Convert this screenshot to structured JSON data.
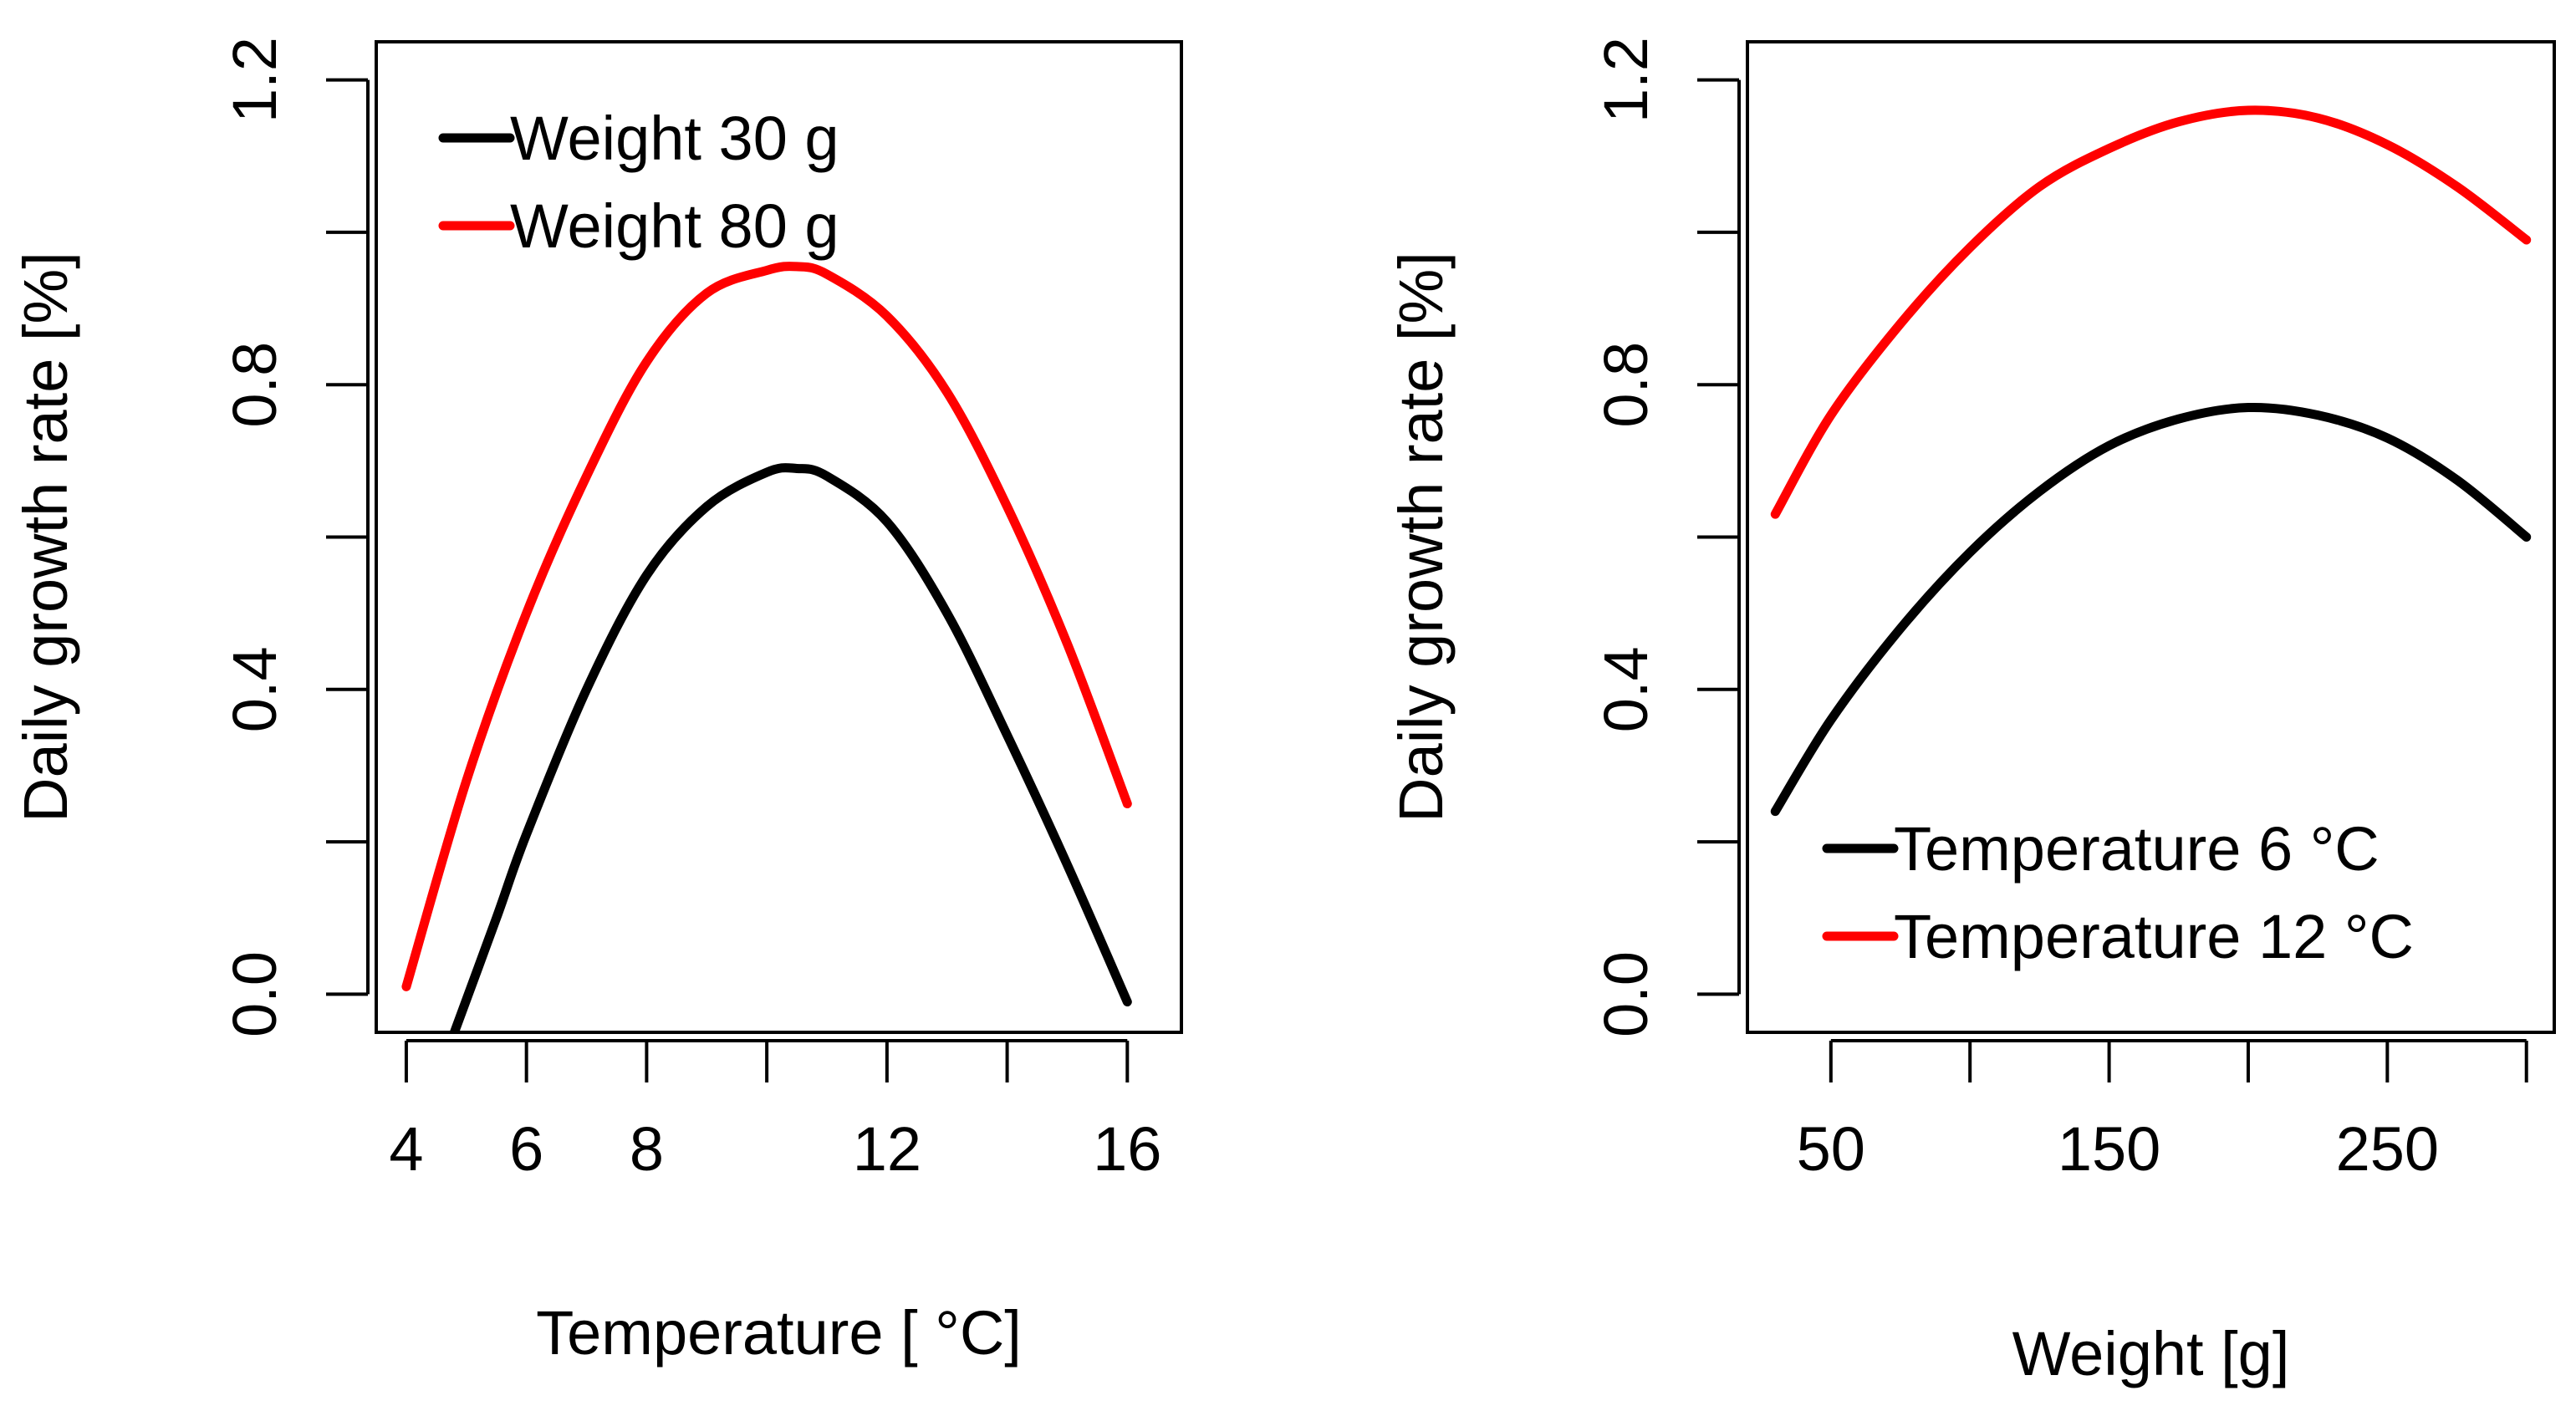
{
  "chart_data": [
    {
      "type": "line",
      "title": "",
      "xlabel": "Temperature [ °C]",
      "ylabel": "Daily growth rate [%]",
      "xlim": [
        3.5,
        16.9
      ],
      "ylim": [
        -0.05,
        1.25
      ],
      "xticks": [
        4,
        6,
        8,
        10,
        12,
        14,
        16
      ],
      "xtick_labels": [
        "4",
        "6",
        "8",
        "",
        "12",
        "",
        "16"
      ],
      "yticks": [
        0.0,
        0.2,
        0.4,
        0.6,
        0.8,
        1.0,
        1.2
      ],
      "ytick_labels": [
        "0.0",
        "",
        "0.4",
        "",
        "0.8",
        "",
        "1.2"
      ],
      "grid": false,
      "legend_position": "top-left",
      "series": [
        {
          "name": "Weight 30 g",
          "color": "#000000",
          "x": [
            4.8,
            5.5,
            6,
            7,
            8,
            9,
            10,
            10.5,
            11,
            12,
            13,
            14,
            15,
            16
          ],
          "y": [
            -0.05,
            0.1,
            0.21,
            0.4,
            0.55,
            0.64,
            0.685,
            0.69,
            0.68,
            0.62,
            0.5,
            0.34,
            0.17,
            -0.01
          ]
        },
        {
          "name": "Weight 80 g",
          "color": "#ff0000",
          "x": [
            4,
            5,
            6,
            7,
            8,
            9,
            10,
            10.5,
            11,
            12,
            13,
            14,
            15,
            16
          ],
          "y": [
            0.01,
            0.28,
            0.5,
            0.68,
            0.83,
            0.92,
            0.95,
            0.955,
            0.945,
            0.89,
            0.79,
            0.64,
            0.46,
            0.25
          ]
        }
      ]
    },
    {
      "type": "line",
      "title": "",
      "xlabel": "Weight [g]",
      "ylabel": "Daily growth rate [%]",
      "xlim": [
        20,
        310
      ],
      "ylim": [
        -0.05,
        1.25
      ],
      "xticks": [
        50,
        100,
        150,
        200,
        250,
        300
      ],
      "xtick_labels": [
        "50",
        "",
        "150",
        "",
        "250",
        ""
      ],
      "yticks": [
        0.0,
        0.2,
        0.4,
        0.6,
        0.8,
        1.0,
        1.2
      ],
      "ytick_labels": [
        "0.0",
        "",
        "0.4",
        "",
        "0.8",
        "",
        "1.2"
      ],
      "grid": false,
      "legend_position": "bottom-right",
      "series": [
        {
          "name": "Temperature 6 °C",
          "color": "#000000",
          "x": [
            30,
            50,
            75,
            100,
            125,
            150,
            175,
            200,
            225,
            250,
            275,
            300
          ],
          "y": [
            0.24,
            0.36,
            0.48,
            0.58,
            0.66,
            0.72,
            0.755,
            0.77,
            0.76,
            0.73,
            0.675,
            0.6
          ]
        },
        {
          "name": "Temperature 12 °C",
          "color": "#ff0000",
          "x": [
            30,
            50,
            75,
            100,
            125,
            150,
            175,
            200,
            225,
            250,
            275,
            300
          ],
          "y": [
            0.63,
            0.76,
            0.88,
            0.98,
            1.06,
            1.11,
            1.145,
            1.16,
            1.15,
            1.115,
            1.06,
            0.99
          ]
        }
      ]
    }
  ]
}
